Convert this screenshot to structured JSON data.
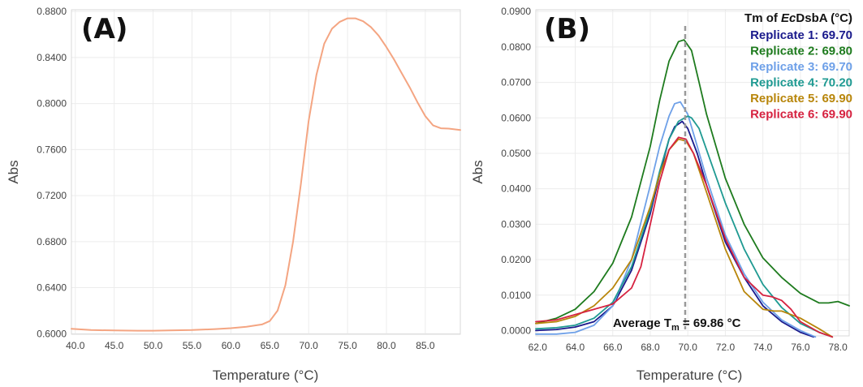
{
  "chart_data": [
    {
      "type": "line",
      "panel_label": "(A)",
      "xlabel": "Temperature (°C)",
      "ylabel": "Abs",
      "xlim": [
        39.5,
        89.5
      ],
      "ylim": [
        0.5995,
        0.8815
      ],
      "xticks": [
        "40.0",
        "45.0",
        "50.0",
        "55.0",
        "60.0",
        "65.0",
        "70.0",
        "75.0",
        "80.0",
        "85.0"
      ],
      "yticks": [
        "0.6000",
        "0.6400",
        "0.6800",
        "0.7200",
        "0.7600",
        "0.8000",
        "0.8400",
        "0.8800"
      ],
      "grid": true,
      "series": [
        {
          "color": "#f4a582",
          "x": [
            39.5,
            42,
            45,
            48,
            50,
            52,
            55,
            58,
            60,
            62,
            64,
            65,
            66,
            67,
            68,
            69,
            70,
            71,
            72,
            73,
            74,
            75,
            76,
            77,
            78,
            79,
            80,
            81,
            82,
            83,
            84,
            85,
            86,
            87,
            88,
            89.5
          ],
          "y": [
            0.6042,
            0.6032,
            0.6028,
            0.6026,
            0.6026,
            0.6028,
            0.6032,
            0.604,
            0.6048,
            0.606,
            0.608,
            0.611,
            0.62,
            0.642,
            0.68,
            0.73,
            0.785,
            0.825,
            0.852,
            0.865,
            0.871,
            0.874,
            0.874,
            0.8715,
            0.8665,
            0.859,
            0.849,
            0.838,
            0.826,
            0.814,
            0.801,
            0.789,
            0.781,
            0.7785,
            0.7782,
            0.777
          ]
        }
      ]
    },
    {
      "type": "line",
      "panel_label": "(B)",
      "xlabel": "Temperature (°C)",
      "ylabel": "Abs",
      "xlim": [
        61.9,
        78.6
      ],
      "ylim": [
        -0.0015,
        0.0905
      ],
      "xticks": [
        "62.0",
        "64.0",
        "66.0",
        "68.0",
        "70.0",
        "72.0",
        "74.0",
        "76.0",
        "78.0"
      ],
      "yticks": [
        "0.0000",
        "0.0100",
        "0.0200",
        "0.0300",
        "0.0400",
        "0.0500",
        "0.0600",
        "0.0700",
        "0.0800",
        "0.0900"
      ],
      "grid": true,
      "legend": {
        "title_prefix": "Tm of ",
        "title_italic": "Ec",
        "title_suffix": "DsbA (°C)",
        "placement": "top-right"
      },
      "vline": {
        "x": 69.86,
        "color": "#999999"
      },
      "annotation": {
        "prefix": "Average T",
        "sub": "m",
        "suffix": " = 69.86 °C"
      },
      "series": [
        {
          "name": "Replicate 1: 69.70",
          "color": "#1a1a8c",
          "x": [
            61.9,
            63,
            64,
            65,
            66,
            67,
            68,
            68.5,
            69,
            69.3,
            69.7,
            70,
            70.5,
            71,
            72,
            73,
            74,
            75,
            76,
            76.7
          ],
          "y": [
            0.0,
            0.0003,
            0.001,
            0.0025,
            0.007,
            0.017,
            0.033,
            0.044,
            0.054,
            0.0575,
            0.059,
            0.057,
            0.05,
            0.041,
            0.025,
            0.015,
            0.007,
            0.0025,
            -0.0005,
            -0.0018
          ]
        },
        {
          "name": "Replicate 2: 69.80",
          "color": "#1e7b1e",
          "x": [
            61.9,
            63,
            64,
            65,
            66,
            67,
            68,
            68.5,
            69,
            69.5,
            69.8,
            70.2,
            70.6,
            71,
            72,
            73,
            74,
            75,
            76,
            77,
            77.5,
            78,
            78.6
          ],
          "y": [
            0.002,
            0.0035,
            0.006,
            0.011,
            0.019,
            0.032,
            0.052,
            0.065,
            0.076,
            0.0815,
            0.082,
            0.079,
            0.07,
            0.061,
            0.043,
            0.03,
            0.0205,
            0.015,
            0.0105,
            0.0078,
            0.0078,
            0.0082,
            0.007
          ]
        },
        {
          "name": "Replicate 3: 69.70",
          "color": "#6ea0e8",
          "x": [
            61.9,
            63,
            64,
            65,
            66,
            67,
            68,
            68.5,
            69,
            69.3,
            69.6,
            70,
            70.5,
            71,
            72,
            73,
            74,
            75,
            76,
            76.8
          ],
          "y": [
            -0.001,
            -0.001,
            -0.0005,
            0.0015,
            0.007,
            0.02,
            0.041,
            0.052,
            0.0605,
            0.064,
            0.0645,
            0.061,
            0.052,
            0.043,
            0.027,
            0.016,
            0.008,
            0.003,
            0.0,
            -0.0018
          ]
        },
        {
          "name": "Replicate 4: 70.20",
          "color": "#1f9a92",
          "x": [
            61.9,
            63,
            64,
            65,
            66,
            67,
            68,
            68.5,
            69,
            69.5,
            70,
            70.2,
            70.6,
            71,
            72,
            73,
            74,
            75,
            76,
            77,
            77.7
          ],
          "y": [
            0.0005,
            0.0008,
            0.0015,
            0.0035,
            0.008,
            0.018,
            0.034,
            0.045,
            0.054,
            0.059,
            0.0605,
            0.06,
            0.057,
            0.051,
            0.036,
            0.023,
            0.013,
            0.0065,
            0.002,
            -0.0005,
            -0.0018
          ]
        },
        {
          "name": "Replicate 5: 69.90",
          "color": "#b8860b",
          "x": [
            61.9,
            63,
            64,
            65,
            66,
            67,
            68,
            68.5,
            69,
            69.5,
            69.9,
            70.3,
            71,
            72,
            73,
            74,
            74.6,
            75,
            76,
            77,
            77.7
          ],
          "y": [
            0.002,
            0.0025,
            0.004,
            0.007,
            0.012,
            0.02,
            0.035,
            0.044,
            0.051,
            0.054,
            0.0535,
            0.05,
            0.039,
            0.023,
            0.011,
            0.006,
            0.0055,
            0.0055,
            0.0035,
            0.0005,
            -0.0018
          ]
        },
        {
          "name": "Replicate 6: 69.90",
          "color": "#d62240",
          "x": [
            61.9,
            63,
            64,
            65,
            66,
            67,
            67.5,
            68,
            68.5,
            69,
            69.5,
            69.9,
            70.3,
            71,
            72,
            73,
            74,
            74.5,
            75,
            75.5,
            76,
            77,
            77.7
          ],
          "y": [
            0.0025,
            0.003,
            0.0045,
            0.006,
            0.0075,
            0.012,
            0.018,
            0.03,
            0.042,
            0.051,
            0.0545,
            0.054,
            0.05,
            0.041,
            0.026,
            0.015,
            0.01,
            0.0095,
            0.0085,
            0.006,
            0.0025,
            -0.0005,
            -0.0018
          ]
        }
      ]
    }
  ]
}
